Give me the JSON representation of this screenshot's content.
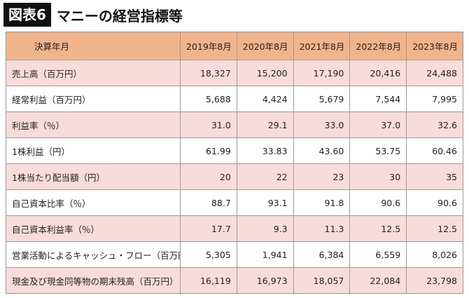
{
  "header": {
    "label": "図表6",
    "title": "マニーの経営指標等"
  },
  "table": {
    "columns": [
      "決算年月",
      "2019年8月",
      "2020年8月",
      "2021年8月",
      "2022年8月",
      "2023年8月"
    ],
    "rows": [
      [
        "売上高（百万円）",
        "18,327",
        "15,200",
        "17,190",
        "20,416",
        "24,488"
      ],
      [
        "経常利益（百万円）",
        "5,688",
        "4,424",
        "5,679",
        "7,544",
        "7,995"
      ],
      [
        "利益率（％）",
        "31.0",
        "29.1",
        "33.0",
        "37.0",
        "32.6"
      ],
      [
        "1株利益（円）",
        "61.99",
        "33.83",
        "43.60",
        "53.75",
        "60.46"
      ],
      [
        "1株当たり配当額（円）",
        "20",
        "22",
        "23",
        "30",
        "35"
      ],
      [
        "自己資本比率（％）",
        "88.7",
        "93.1",
        "91.8",
        "90.6",
        "90.6"
      ],
      [
        "自己資本利益率（％）",
        "17.7",
        "9.3",
        "11.3",
        "12.5",
        "12.5"
      ],
      [
        "営業活動によるキャッシュ・フロー（百万円）",
        "5,305",
        "1,941",
        "6,384",
        "6,559",
        "8,026"
      ],
      [
        "現金及び現金同等物の期末残高（百万円）",
        "16,119",
        "16,973",
        "18,057",
        "22,084",
        "23,798"
      ]
    ]
  }
}
